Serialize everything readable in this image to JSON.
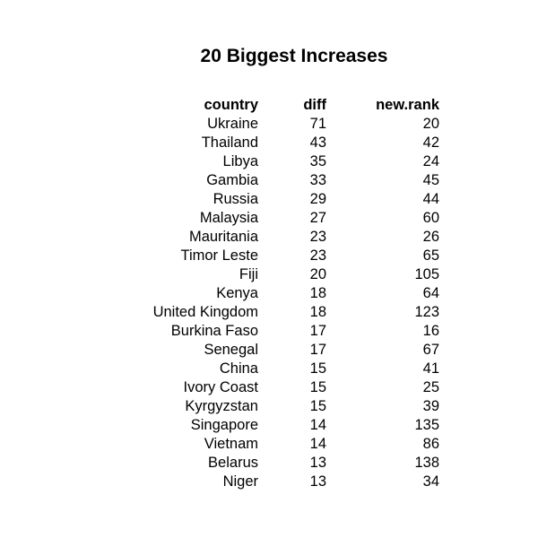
{
  "chart_data": {
    "type": "table",
    "title": "20 Biggest Increases",
    "columns": [
      "country",
      "diff",
      "new.rank"
    ],
    "rows": [
      [
        "Ukraine",
        "71",
        "20"
      ],
      [
        "Thailand",
        "43",
        "42"
      ],
      [
        "Libya",
        "35",
        "24"
      ],
      [
        "Gambia",
        "33",
        "45"
      ],
      [
        "Russia",
        "29",
        "44"
      ],
      [
        "Malaysia",
        "27",
        "60"
      ],
      [
        "Mauritania",
        "23",
        "26"
      ],
      [
        "Timor Leste",
        "23",
        "65"
      ],
      [
        "Fiji",
        "20",
        "105"
      ],
      [
        "Kenya",
        "18",
        "64"
      ],
      [
        "United Kingdom",
        "18",
        "123"
      ],
      [
        "Burkina Faso",
        "17",
        "16"
      ],
      [
        "Senegal",
        "17",
        "67"
      ],
      [
        "China",
        "15",
        "41"
      ],
      [
        "Ivory Coast",
        "15",
        "25"
      ],
      [
        "Kyrgyzstan",
        "15",
        "39"
      ],
      [
        "Singapore",
        "14",
        "135"
      ],
      [
        "Vietnam",
        "14",
        "86"
      ],
      [
        "Belarus",
        "13",
        "138"
      ],
      [
        "Niger",
        "13",
        "34"
      ]
    ]
  }
}
